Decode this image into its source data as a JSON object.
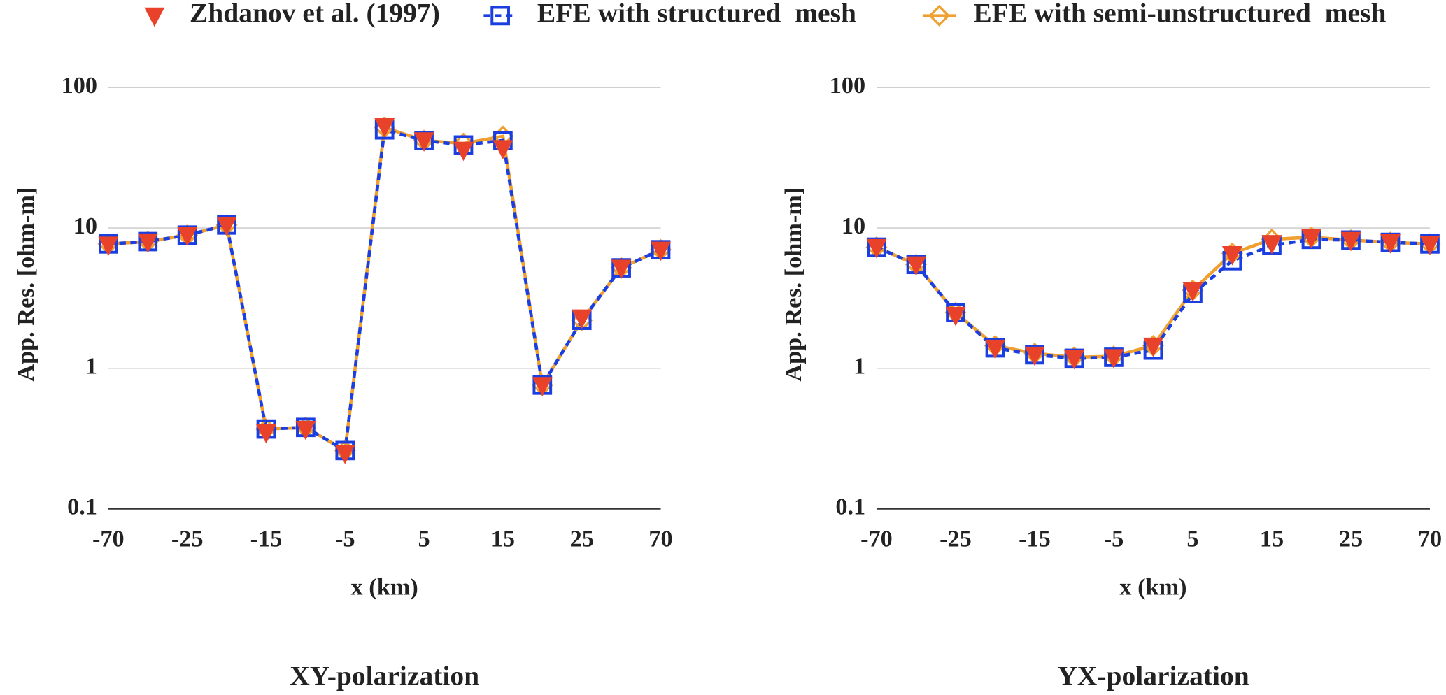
{
  "chart_data": [
    {
      "type": "line",
      "title": "XY-polarization",
      "x_label": "x (km)",
      "y_label": "App. Res. [ohm-m]",
      "categories": [
        "-70",
        null,
        "-25",
        null,
        "-15",
        null,
        "-5",
        null,
        "5",
        null,
        "15",
        null,
        "25",
        null,
        "70"
      ],
      "ylim": [
        0.1,
        100
      ],
      "yticks": [
        0.1,
        1,
        10,
        100
      ],
      "log_y": true,
      "grid": true,
      "series": [
        {
          "name": "Zhdanov et al. (1997)",
          "color": "#e8432a",
          "marker": "triangle-down",
          "line": "none",
          "values": [
            7.6,
            8.0,
            8.9,
            10.5,
            0.35,
            0.37,
            0.25,
            53,
            42,
            36,
            37,
            0.76,
            2.3,
            5.2,
            7.0
          ]
        },
        {
          "name": "EFE with structured  mesh",
          "color": "#1a3ee0",
          "marker": "square",
          "line": "dashed",
          "values": [
            7.7,
            8.0,
            8.9,
            10.5,
            0.37,
            0.38,
            0.26,
            50,
            42,
            39,
            42,
            0.76,
            2.2,
            5.2,
            7.0
          ]
        },
        {
          "name": "EFE with semi-unstructured  mesh",
          "color": "#f0a030",
          "marker": "diamond",
          "line": "solid",
          "values": [
            7.7,
            8.0,
            8.9,
            10.5,
            0.37,
            0.38,
            0.26,
            52,
            42,
            40,
            45,
            0.76,
            2.2,
            5.2,
            7.0
          ]
        }
      ]
    },
    {
      "type": "line",
      "title": "YX-polarization",
      "x_label": "x (km)",
      "y_label": "App. Res. [ohm-m]",
      "categories": [
        "-70",
        null,
        "-25",
        null,
        "-15",
        null,
        "-5",
        null,
        "5",
        null,
        "15",
        null,
        "25",
        null,
        "70"
      ],
      "ylim": [
        0.1,
        100
      ],
      "yticks": [
        0.1,
        1,
        10,
        100
      ],
      "log_y": true,
      "grid": true,
      "series": [
        {
          "name": "Zhdanov et al. (1997)",
          "color": "#e8432a",
          "marker": "triangle-down",
          "line": "none",
          "values": [
            7.3,
            5.5,
            2.4,
            1.4,
            1.25,
            1.18,
            1.2,
            1.45,
            3.6,
            6.5,
            7.8,
            8.6,
            8.2,
            7.9,
            7.7
          ]
        },
        {
          "name": "EFE with structured  mesh",
          "color": "#1a3ee0",
          "marker": "square",
          "line": "dashed",
          "values": [
            7.3,
            5.5,
            2.5,
            1.4,
            1.25,
            1.18,
            1.2,
            1.35,
            3.4,
            5.85,
            7.5,
            8.3,
            8.2,
            7.9,
            7.7
          ]
        },
        {
          "name": "EFE with semi-unstructured  mesh",
          "color": "#f0a030",
          "marker": "diamond",
          "line": "solid",
          "values": [
            7.3,
            5.5,
            2.5,
            1.45,
            1.28,
            1.2,
            1.22,
            1.45,
            3.6,
            6.6,
            8.3,
            8.6,
            8.2,
            7.9,
            7.7
          ]
        }
      ]
    }
  ]
}
